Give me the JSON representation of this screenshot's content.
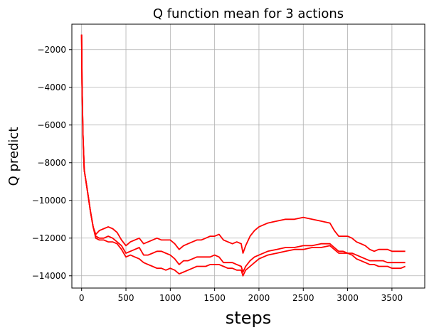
{
  "chart_data": {
    "type": "line",
    "title": "Q function mean for 3 actions",
    "xlabel": "steps",
    "ylabel": "Q predict",
    "xlim": [
      -110,
      3870
    ],
    "ylim": [
      -14650,
      -650
    ],
    "grid": true,
    "xticks": [
      0,
      500,
      1000,
      1500,
      2000,
      2500,
      3000,
      3500
    ],
    "yticks": [
      -2000,
      -4000,
      -6000,
      -8000,
      -10000,
      -12000,
      -14000
    ],
    "line_color": "#ff0000",
    "series": [
      {
        "x": [
          0,
          5,
          15,
          30,
          50,
          75,
          100,
          130,
          160,
          200,
          250,
          300,
          350,
          400,
          450,
          500,
          550,
          600,
          650,
          700,
          750,
          800,
          850,
          900,
          950,
          1000,
          1050,
          1100,
          1150,
          1200,
          1250,
          1300,
          1350,
          1400,
          1450,
          1500,
          1550,
          1600,
          1650,
          1700,
          1750,
          1800,
          1820,
          1850,
          1900,
          1950,
          2000,
          2100,
          2200,
          2300,
          2400,
          2500,
          2600,
          2700,
          2800,
          2850,
          2900,
          2950,
          3000,
          3050,
          3100,
          3150,
          3200,
          3250,
          3300,
          3350,
          3400,
          3450,
          3500,
          3550,
          3600,
          3650
        ],
        "values": [
          -1200,
          -3800,
          -6500,
          -8400,
          -9000,
          -9800,
          -10600,
          -11400,
          -11800,
          -11600,
          -11500,
          -11400,
          -11500,
          -11700,
          -12100,
          -12400,
          -12200,
          -12100,
          -12000,
          -12300,
          -12200,
          -12100,
          -12000,
          -12100,
          -12100,
          -12100,
          -12300,
          -12600,
          -12400,
          -12300,
          -12200,
          -12100,
          -12100,
          -12000,
          -11900,
          -11900,
          -11800,
          -12100,
          -12200,
          -12300,
          -12200,
          -12300,
          -12800,
          -12400,
          -11900,
          -11600,
          -11400,
          -11200,
          -11100,
          -11000,
          -11000,
          -10900,
          -11000,
          -11100,
          -11200,
          -11600,
          -11900,
          -11900,
          -11900,
          -12000,
          -12200,
          -12300,
          -12400,
          -12600,
          -12700,
          -12600,
          -12600,
          -12600,
          -12700,
          -12700,
          -12700,
          -12700
        ]
      },
      {
        "x": [
          0,
          5,
          15,
          30,
          50,
          75,
          100,
          130,
          160,
          200,
          250,
          300,
          350,
          400,
          450,
          500,
          550,
          600,
          650,
          700,
          750,
          800,
          850,
          900,
          950,
          1000,
          1050,
          1100,
          1150,
          1200,
          1250,
          1300,
          1350,
          1400,
          1450,
          1500,
          1550,
          1600,
          1650,
          1700,
          1750,
          1800,
          1820,
          1850,
          1900,
          1950,
          2000,
          2100,
          2200,
          2300,
          2400,
          2500,
          2600,
          2700,
          2800,
          2850,
          2900,
          2950,
          3000,
          3050,
          3100,
          3150,
          3200,
          3250,
          3300,
          3350,
          3400,
          3450,
          3500,
          3550,
          3600,
          3650
        ],
        "values": [
          -1200,
          -3800,
          -6500,
          -8400,
          -9000,
          -9800,
          -10600,
          -11400,
          -11900,
          -12000,
          -12000,
          -11900,
          -12000,
          -12200,
          -12400,
          -12800,
          -12700,
          -12600,
          -12500,
          -12900,
          -12900,
          -12800,
          -12700,
          -12700,
          -12800,
          -12900,
          -13100,
          -13400,
          -13200,
          -13200,
          -13100,
          -13000,
          -13000,
          -13000,
          -13000,
          -12900,
          -13000,
          -13300,
          -13300,
          -13300,
          -13400,
          -13500,
          -13800,
          -13500,
          -13200,
          -13000,
          -12900,
          -12700,
          -12600,
          -12500,
          -12500,
          -12400,
          -12400,
          -12300,
          -12300,
          -12500,
          -12700,
          -12700,
          -12800,
          -12800,
          -12900,
          -13000,
          -13100,
          -13200,
          -13200,
          -13200,
          -13200,
          -13300,
          -13300,
          -13300,
          -13300,
          -13300
        ]
      },
      {
        "x": [
          0,
          5,
          15,
          30,
          50,
          75,
          100,
          130,
          160,
          200,
          250,
          300,
          350,
          400,
          450,
          500,
          550,
          600,
          650,
          700,
          750,
          800,
          850,
          900,
          950,
          1000,
          1050,
          1100,
          1150,
          1200,
          1250,
          1300,
          1350,
          1400,
          1450,
          1500,
          1550,
          1600,
          1650,
          1700,
          1750,
          1800,
          1820,
          1850,
          1900,
          1950,
          2000,
          2100,
          2200,
          2300,
          2400,
          2500,
          2600,
          2700,
          2800,
          2850,
          2900,
          2950,
          3000,
          3050,
          3100,
          3150,
          3200,
          3250,
          3300,
          3350,
          3400,
          3450,
          3500,
          3550,
          3600,
          3650
        ],
        "values": [
          -1200,
          -3800,
          -6500,
          -8400,
          -9000,
          -9800,
          -10600,
          -11400,
          -12000,
          -12100,
          -12100,
          -12200,
          -12200,
          -12300,
          -12600,
          -13000,
          -12900,
          -13000,
          -13100,
          -13300,
          -13400,
          -13500,
          -13600,
          -13600,
          -13700,
          -13600,
          -13700,
          -13900,
          -13800,
          -13700,
          -13600,
          -13500,
          -13500,
          -13500,
          -13400,
          -13400,
          -13400,
          -13500,
          -13600,
          -13600,
          -13700,
          -13700,
          -14000,
          -13700,
          -13500,
          -13300,
          -13100,
          -12900,
          -12800,
          -12700,
          -12600,
          -12600,
          -12500,
          -12500,
          -12400,
          -12600,
          -12800,
          -12800,
          -12800,
          -12900,
          -13100,
          -13200,
          -13300,
          -13400,
          -13400,
          -13500,
          -13500,
          -13500,
          -13600,
          -13600,
          -13600,
          -13500
        ]
      }
    ]
  }
}
